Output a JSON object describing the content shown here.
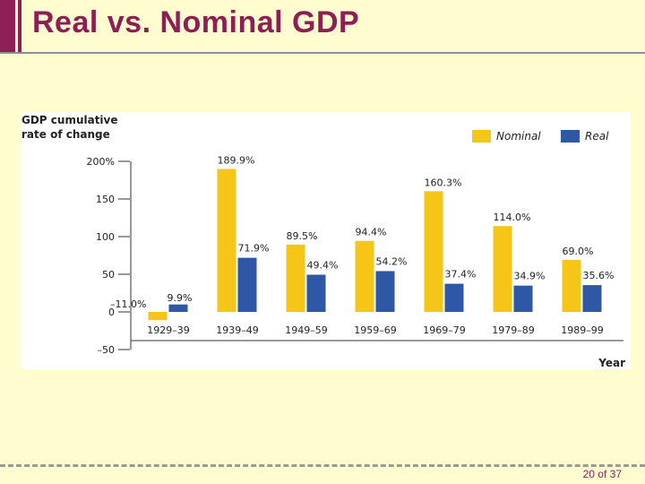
{
  "slide": {
    "title": "Real vs. Nominal GDP",
    "page_indicator": "20 of 37",
    "accent_color": "#8E1F54",
    "background_color": "#FFFCCF"
  },
  "chart_data": {
    "type": "bar",
    "title_lines": [
      "GDP cumulative",
      "rate of change"
    ],
    "xlabel": "Year",
    "ylabel": "",
    "categories": [
      "1929–39",
      "1939–49",
      "1949–59",
      "1959–69",
      "1969–79",
      "1979–89",
      "1989–99"
    ],
    "series": [
      {
        "name": "Nominal",
        "color": "#F5C518",
        "values": [
          -11.0,
          189.9,
          89.5,
          94.4,
          160.3,
          114.0,
          69.0
        ],
        "labels": [
          "–11.0%",
          "189.9%",
          "89.5%",
          "94.4%",
          "160.3%",
          "114.0%",
          "69.0%"
        ]
      },
      {
        "name": "Real",
        "color": "#2E58A6",
        "values": [
          9.9,
          71.9,
          49.4,
          54.2,
          37.4,
          34.9,
          35.6
        ],
        "labels": [
          "9.9%",
          "71.9%",
          "49.4%",
          "54.2%",
          "37.4%",
          "34.9%",
          "35.6%"
        ]
      }
    ],
    "ylim": [
      -50,
      200
    ],
    "yticks": [
      200,
      150,
      100,
      50,
      0,
      -50
    ],
    "ytick_labels": [
      "200%",
      "150",
      "100",
      "50",
      "0",
      "–50"
    ],
    "legend_position": "top-right",
    "grid": false
  }
}
